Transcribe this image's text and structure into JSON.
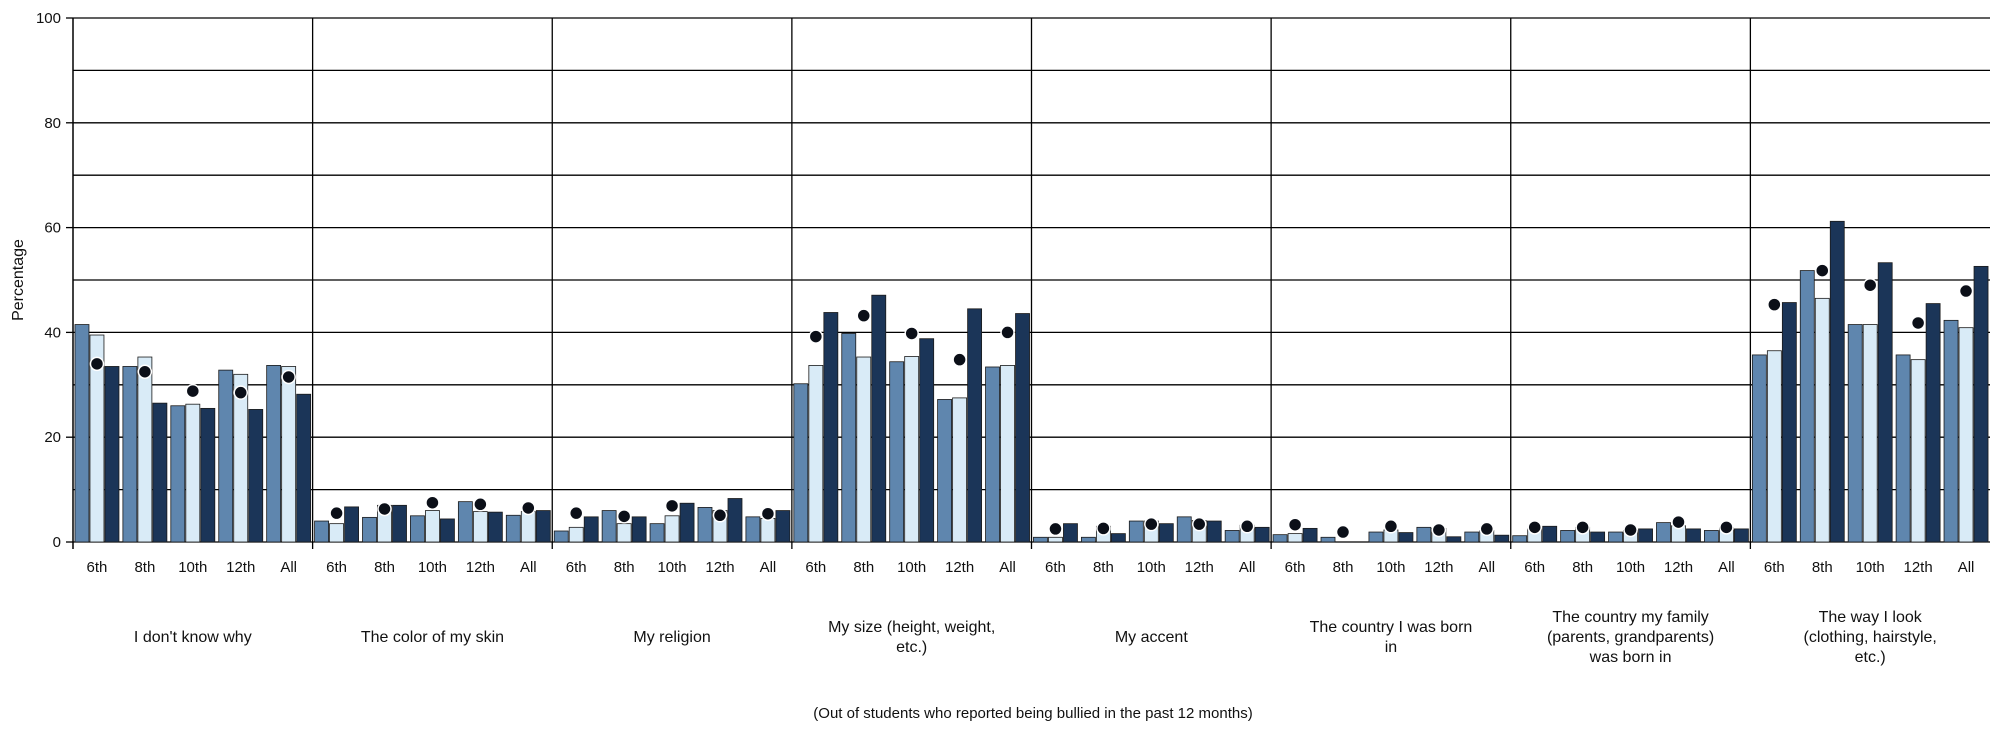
{
  "chart_data": {
    "type": "bar",
    "xlabel": "(Out of students who reported being bullied in the past 12 months)",
    "ylabel": "Percentage",
    "ylim": [
      0,
      100
    ],
    "yticks": [
      0,
      20,
      40,
      60,
      80,
      100
    ],
    "grid": true,
    "subcategories": [
      "6th",
      "8th",
      "10th",
      "12th",
      "All"
    ],
    "groups": [
      {
        "label": "I don't know why",
        "bars": [
          [
            41.5,
            39.5,
            33.5
          ],
          [
            33.5,
            35.3,
            26.5
          ],
          [
            26.0,
            26.3,
            25.5
          ],
          [
            32.8,
            32.0,
            25.3
          ],
          [
            33.7,
            33.5,
            28.2
          ]
        ],
        "markers": [
          34.0,
          32.5,
          28.8,
          28.5,
          31.5
        ]
      },
      {
        "label": "The color of my skin",
        "bars": [
          [
            4.0,
            3.5,
            6.7
          ],
          [
            4.7,
            7.0,
            7.0
          ],
          [
            5.0,
            6.0,
            4.4
          ],
          [
            7.7,
            5.8,
            5.7
          ],
          [
            5.1,
            5.8,
            6.0
          ]
        ],
        "markers": [
          5.5,
          6.3,
          7.5,
          7.2,
          6.5
        ]
      },
      {
        "label": "My religion",
        "bars": [
          [
            2.1,
            2.8,
            4.8
          ],
          [
            6.0,
            3.5,
            4.8
          ],
          [
            3.5,
            5.0,
            7.4
          ],
          [
            6.6,
            6.0,
            8.3
          ],
          [
            4.8,
            4.5,
            6.0
          ]
        ],
        "markers": [
          5.5,
          4.9,
          6.9,
          5.1,
          5.4
        ]
      },
      {
        "label": "My size (height, weight, etc.)",
        "bars": [
          [
            30.2,
            33.7,
            43.8
          ],
          [
            39.8,
            35.3,
            47.1
          ],
          [
            34.4,
            35.4,
            38.8
          ],
          [
            27.2,
            27.5,
            44.5
          ],
          [
            33.4,
            33.7,
            43.6
          ]
        ],
        "markers": [
          39.2,
          43.2,
          39.8,
          34.8,
          40.0
        ]
      },
      {
        "label": "My accent",
        "bars": [
          [
            0.9,
            0.9,
            3.5
          ],
          [
            0.9,
            3.0,
            1.6
          ],
          [
            4.0,
            4.0,
            3.5
          ],
          [
            4.8,
            4.1,
            4.0
          ],
          [
            2.2,
            3.2,
            2.8
          ]
        ],
        "markers": [
          2.5,
          2.6,
          3.4,
          3.4,
          3.0
        ]
      },
      {
        "label": "The country I was born in",
        "bars": [
          [
            1.4,
            1.6,
            2.6
          ],
          [
            0.9,
            0.0,
            0.0
          ],
          [
            1.9,
            2.3,
            1.8
          ],
          [
            2.8,
            2.6,
            1.0
          ],
          [
            1.9,
            2.2,
            1.3
          ]
        ],
        "markers": [
          3.3,
          1.9,
          3.0,
          2.3,
          2.5
        ]
      },
      {
        "label": "The country my family (parents, grandparents) was born in",
        "bars": [
          [
            1.2,
            2.5,
            3.0
          ],
          [
            2.2,
            2.8,
            1.9
          ],
          [
            1.9,
            2.2,
            2.5
          ],
          [
            3.7,
            3.1,
            2.5
          ],
          [
            2.2,
            2.7,
            2.5
          ]
        ],
        "markers": [
          2.8,
          2.8,
          2.3,
          3.8,
          2.8
        ]
      },
      {
        "label": "The way I look (clothing, hairstyle, etc.)",
        "bars": [
          [
            35.7,
            36.5,
            45.7
          ],
          [
            51.8,
            46.5,
            61.2
          ],
          [
            41.5,
            41.5,
            53.3
          ],
          [
            35.7,
            34.8,
            45.5
          ],
          [
            42.3,
            40.9,
            52.6
          ]
        ],
        "markers": [
          45.3,
          51.8,
          49.0,
          41.8,
          47.9
        ]
      }
    ],
    "colors": {
      "series_1": "#5f86ae",
      "series_2": "#d9ebf7",
      "series_3": "#1b3558",
      "marker": "#0b0f18",
      "grid": "#000000"
    }
  }
}
